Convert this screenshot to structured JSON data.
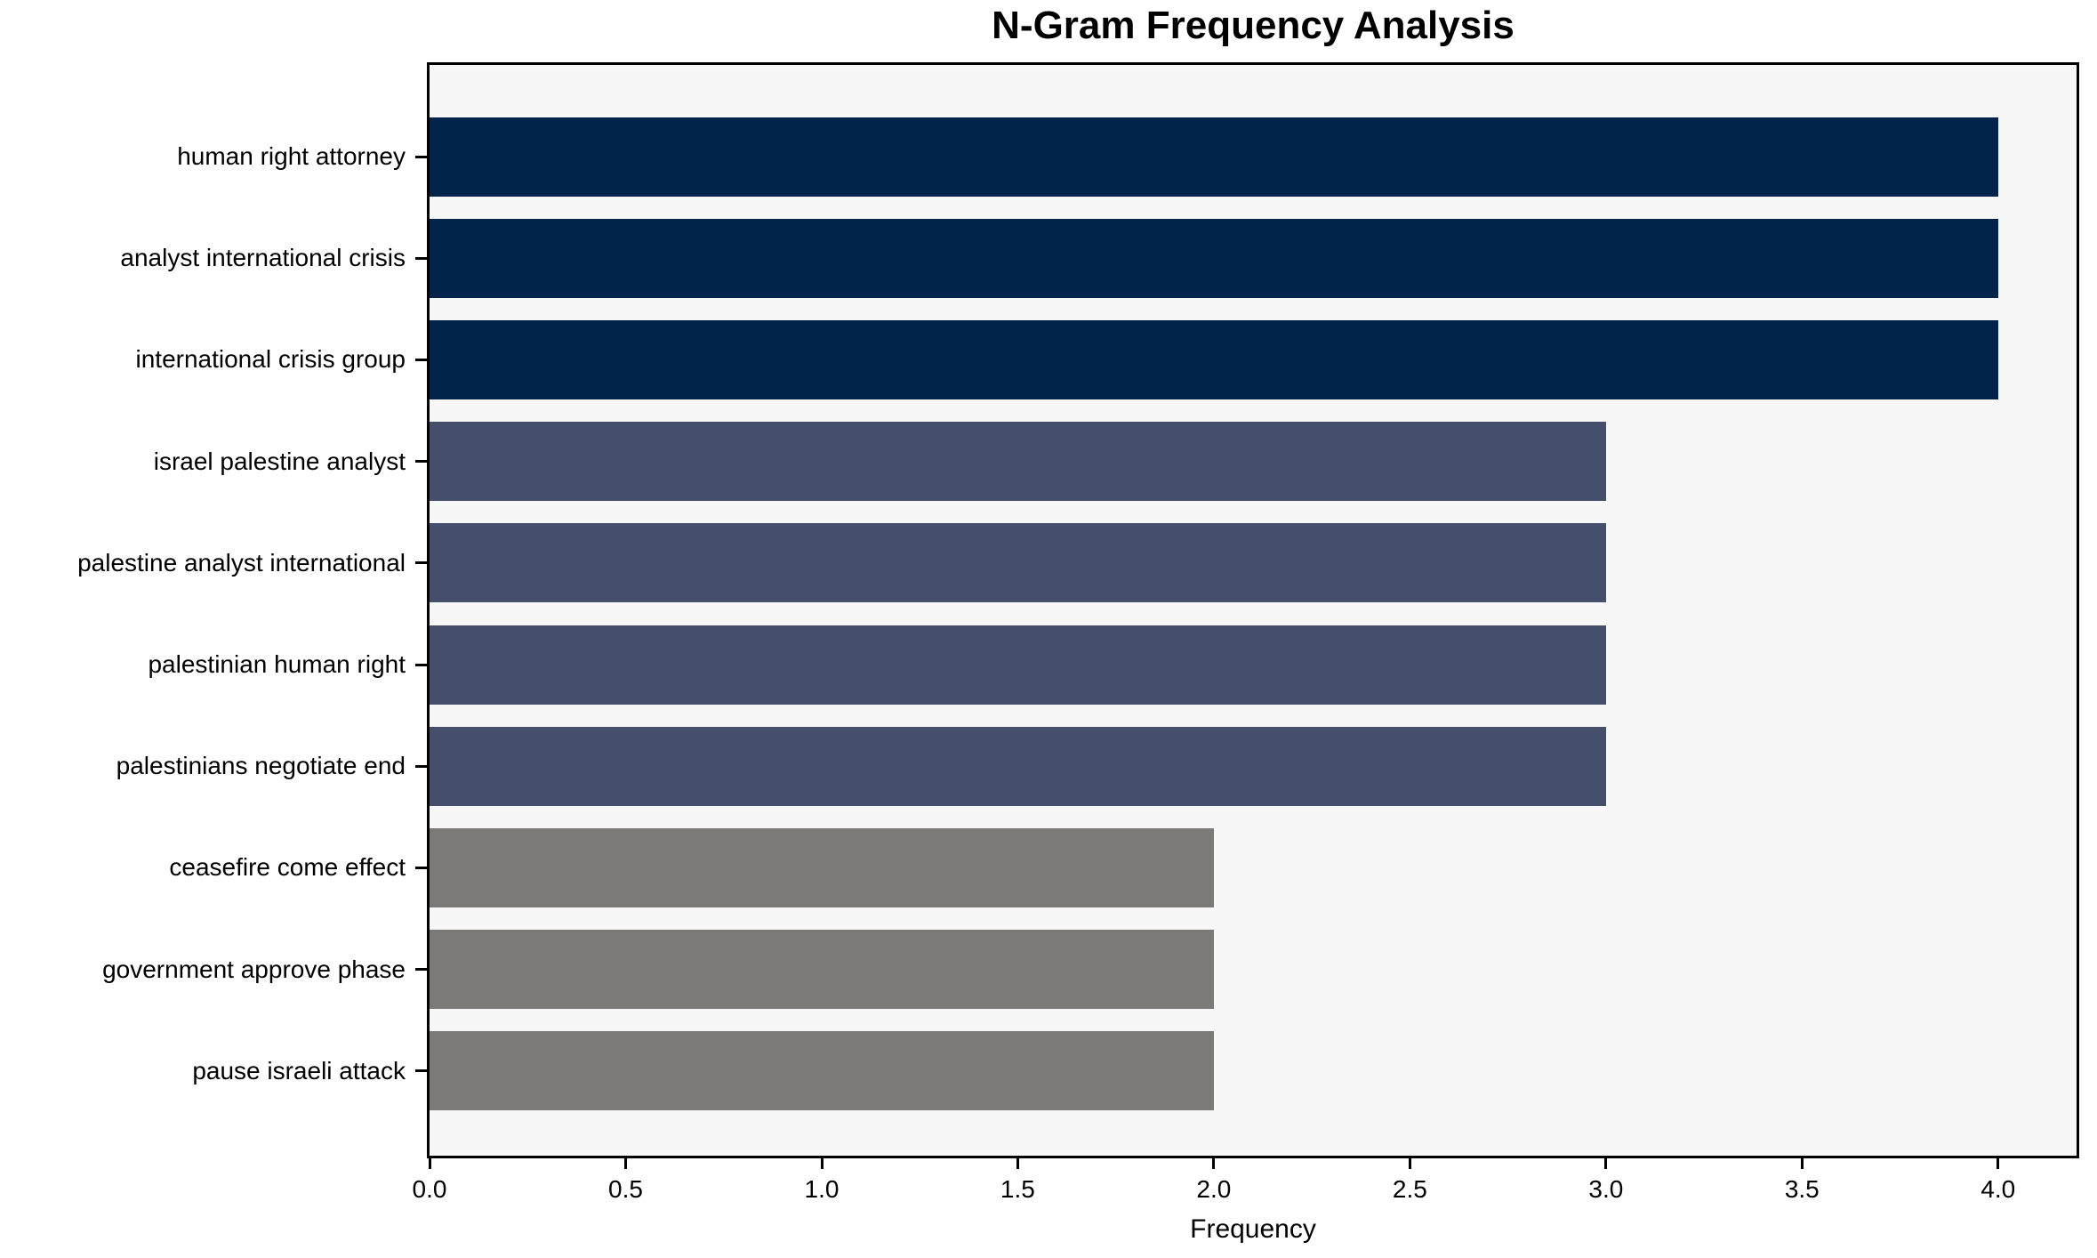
{
  "chart_data": {
    "type": "bar",
    "orientation": "horizontal",
    "title": "N-Gram Frequency Analysis",
    "xlabel": "Frequency",
    "ylabel": "",
    "categories": [
      "human right attorney",
      "analyst international crisis",
      "international crisis group",
      "israel palestine analyst",
      "palestine analyst international",
      "palestinian human right",
      "palestinians negotiate end",
      "ceasefire come effect",
      "government approve phase",
      "pause israeli attack"
    ],
    "values": [
      4,
      4,
      4,
      3,
      3,
      3,
      3,
      2,
      2,
      2
    ],
    "bar_colors": [
      "#02234a",
      "#02234a",
      "#02234a",
      "#454f6b",
      "#454f6b",
      "#454f6b",
      "#454f6b",
      "#7b7a77",
      "#7b7a77",
      "#7b7a77"
    ],
    "x_ticks": [
      0,
      0.5,
      1,
      1.5,
      2,
      2.5,
      3,
      3.5,
      4
    ],
    "x_tick_labels": [
      "0.0",
      "0.5",
      "1.0",
      "1.5",
      "2.0",
      "2.5",
      "3.0",
      "3.5",
      "4.0"
    ],
    "xlim": [
      0,
      4.2
    ],
    "grid": false,
    "legend": null,
    "colors": {
      "plot_background": "#f7f7f7",
      "figure_background": "#ffffff",
      "spine": "#000000",
      "text": "#000000"
    }
  }
}
